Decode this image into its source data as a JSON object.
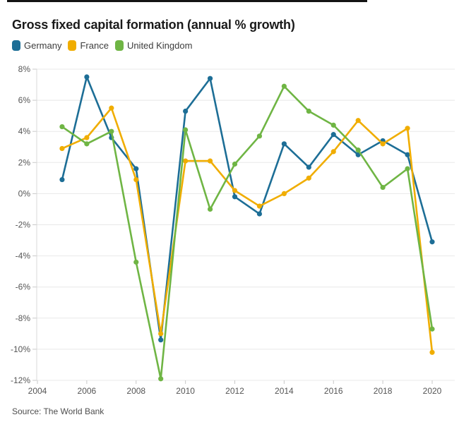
{
  "page": {
    "title": "Gross fixed capital formation (annual % growth)",
    "source": "Source: The World Bank"
  },
  "colors": {
    "germany": "#1d6e96",
    "france": "#f0ad00",
    "united_kingdom": "#6fb544",
    "gridline": "#e8e8e8",
    "axis_line": "#d9d9d9",
    "tick": "#c9c9c9",
    "tick_label": "#555555"
  },
  "chart_data": {
    "type": "line",
    "title": "Gross fixed capital formation (annual % growth)",
    "x": [
      2005,
      2006,
      2007,
      2008,
      2009,
      2010,
      2011,
      2012,
      2013,
      2014,
      2015,
      2016,
      2017,
      2018,
      2019,
      2020
    ],
    "series": [
      {
        "name": "Germany",
        "color": "#1d6e96",
        "values": [
          0.9,
          7.5,
          3.6,
          1.6,
          -9.4,
          5.3,
          7.4,
          -0.2,
          -1.3,
          3.2,
          1.7,
          3.8,
          2.5,
          3.4,
          2.5,
          -3.1
        ]
      },
      {
        "name": "France",
        "color": "#f0ad00",
        "values": [
          2.9,
          3.6,
          5.5,
          0.9,
          -9.0,
          2.1,
          2.1,
          0.2,
          -0.8,
          0.0,
          1.0,
          2.7,
          4.7,
          3.2,
          4.2,
          -10.2
        ]
      },
      {
        "name": "United Kingdom",
        "color": "#6fb544",
        "values": [
          4.3,
          3.2,
          4.0,
          -4.4,
          -11.9,
          4.1,
          -1.0,
          1.9,
          3.7,
          6.9,
          5.3,
          4.4,
          2.8,
          0.4,
          1.6,
          -8.7
        ]
      }
    ],
    "xlim": [
      2004,
      2020
    ],
    "ylim": [
      -12,
      8
    ],
    "x_ticks": [
      2004,
      2006,
      2008,
      2010,
      2012,
      2014,
      2016,
      2018,
      2020
    ],
    "y_ticks": [
      8,
      6,
      4,
      2,
      0,
      -2,
      -4,
      -6,
      -8,
      -10,
      -12
    ],
    "y_tick_suffix": "%",
    "grid": true,
    "legend_position": "top-left"
  }
}
